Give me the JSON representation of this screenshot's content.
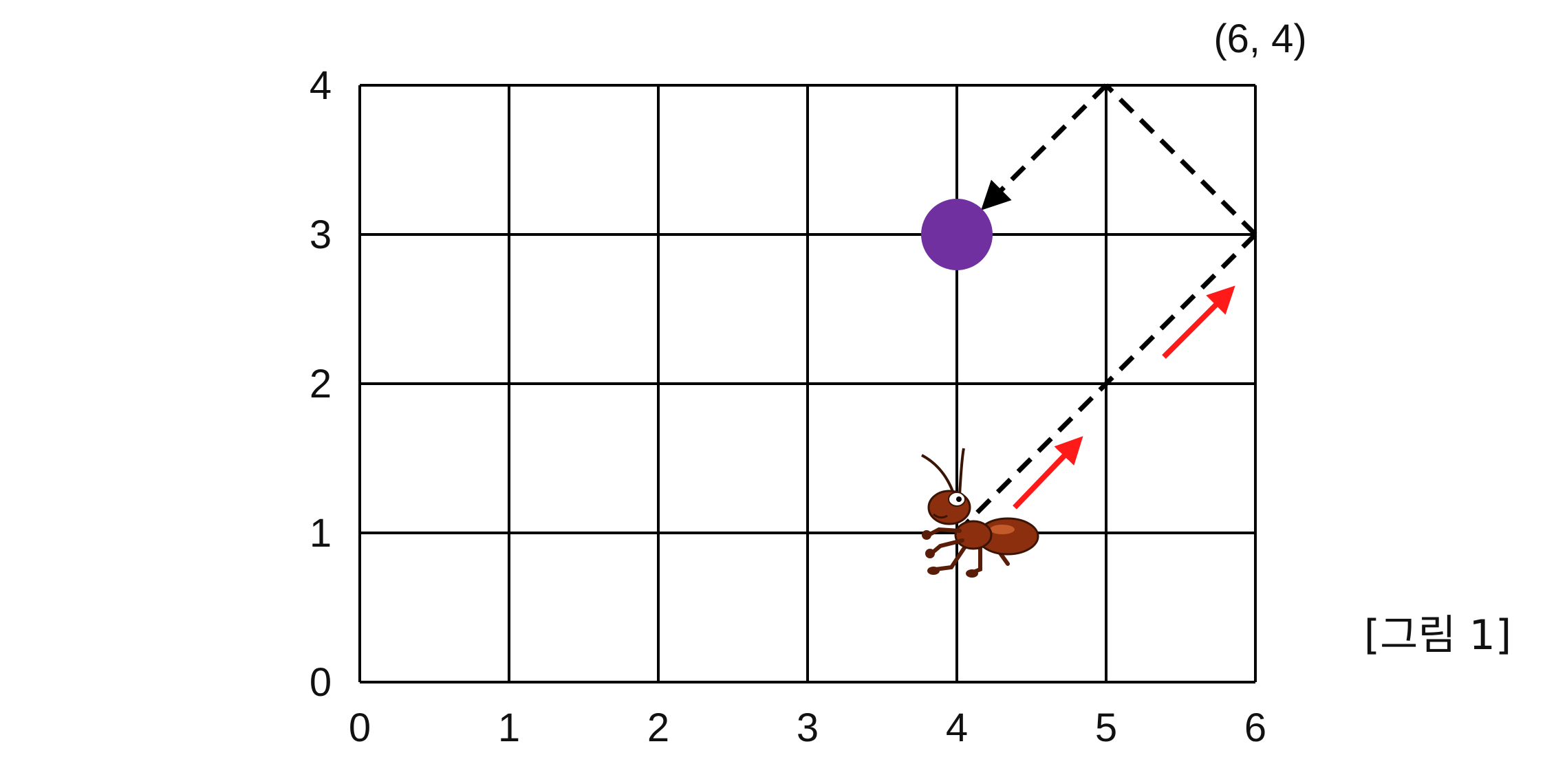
{
  "figure": {
    "corner_label": "(6, 4)",
    "caption": "[그림 1]"
  },
  "grid": {
    "x_ticks": [
      "0",
      "1",
      "2",
      "3",
      "4",
      "5",
      "6"
    ],
    "y_ticks": [
      "0",
      "1",
      "2",
      "3",
      "4"
    ],
    "x_range": [
      0,
      6
    ],
    "y_range": [
      0,
      4
    ]
  },
  "path": {
    "points": [
      [
        4,
        1
      ],
      [
        6,
        3
      ],
      [
        5,
        4
      ],
      [
        4,
        3
      ]
    ]
  },
  "markers": {
    "ball": {
      "x": 4,
      "y": 3
    },
    "ant": {
      "x": 4,
      "y": 1
    }
  },
  "colors": {
    "grid": "#000000",
    "ball": "#7030a0",
    "arrow": "#ff1a1a",
    "path": "#000000",
    "ant_body": "#8b2f0e"
  }
}
